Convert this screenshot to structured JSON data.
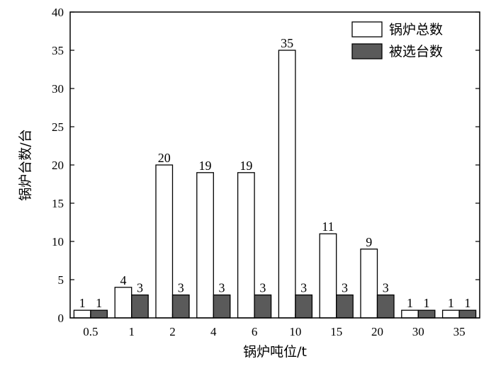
{
  "chart_data": {
    "type": "bar",
    "categories": [
      "0.5",
      "1",
      "2",
      "4",
      "6",
      "10",
      "15",
      "20",
      "30",
      "35"
    ],
    "series": [
      {
        "name": "锅炉总数",
        "values": [
          1,
          4,
          20,
          19,
          19,
          35,
          11,
          9,
          1,
          1
        ],
        "color": "#ffffff"
      },
      {
        "name": "被选台数",
        "values": [
          1,
          3,
          3,
          3,
          3,
          3,
          3,
          3,
          1,
          1
        ],
        "color": "#5a5a5a"
      }
    ],
    "title": "",
    "xlabel": "锅炉吨位/t",
    "ylabel": "锅炉台数/台",
    "ylim": [
      0,
      40
    ],
    "yticks": [
      0,
      5,
      10,
      15,
      20,
      25,
      30,
      35,
      40
    ],
    "grid": false,
    "legend_position": "top-right"
  }
}
